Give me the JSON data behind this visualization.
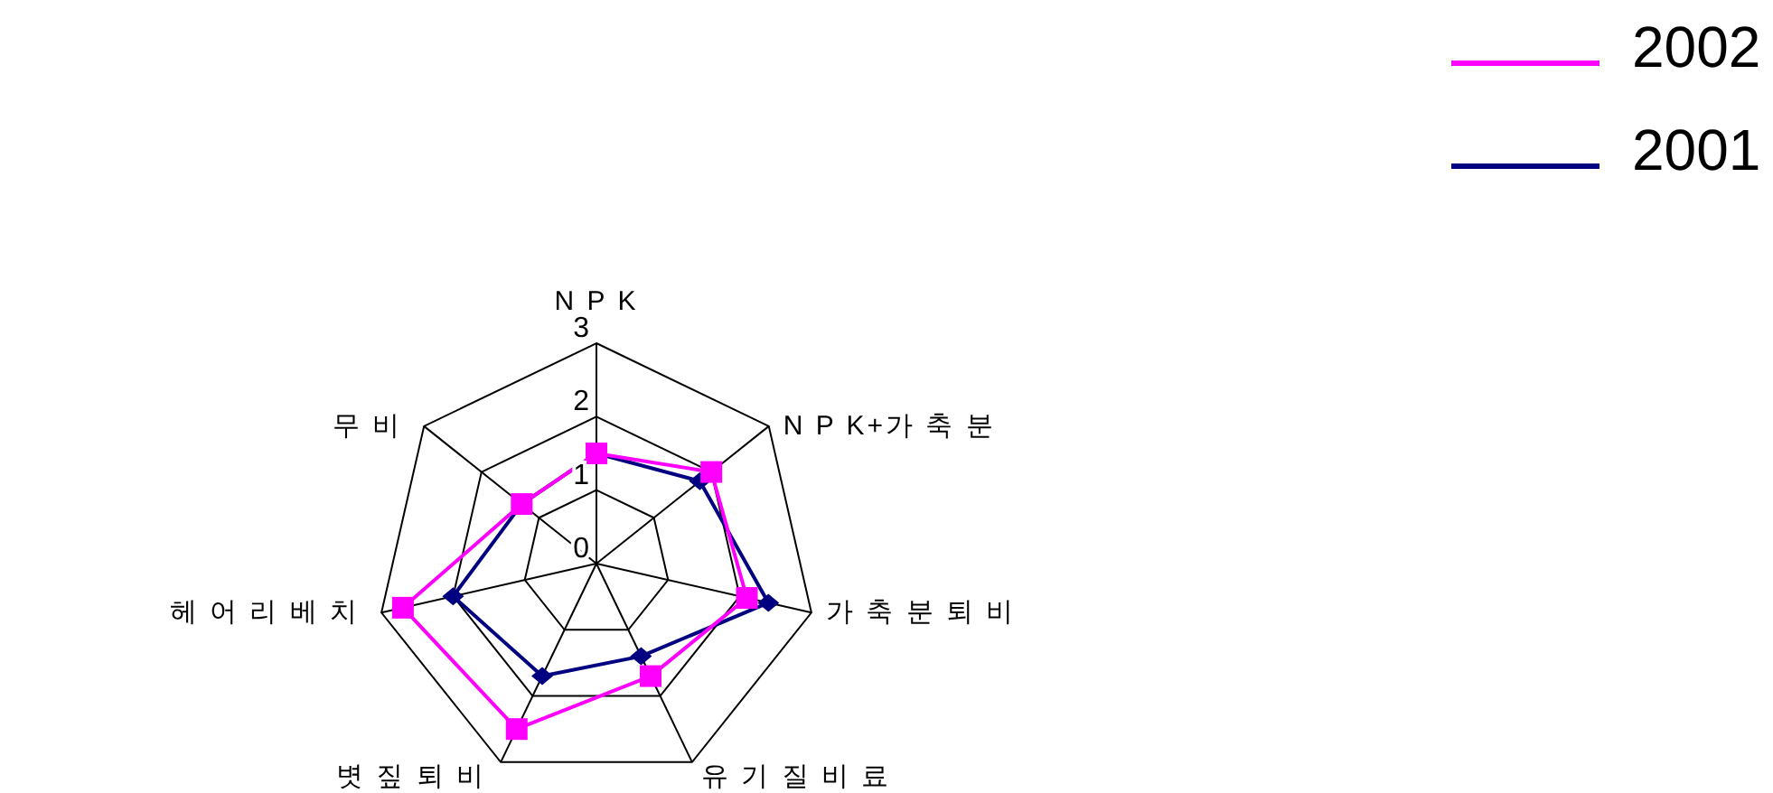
{
  "chart_data": {
    "type": "radar",
    "categories": [
      "N P K",
      "N P K+가 축 분",
      "가 축 분 퇴 비",
      "유 기 질 비 료",
      "볏 짚 퇴 비",
      "헤 어 리 베 치",
      "무 비"
    ],
    "series": [
      {
        "name": "2002",
        "color": "#ff00ff",
        "marker": "square",
        "values": [
          1.5,
          2.0,
          2.1,
          1.7,
          2.5,
          2.7,
          1.3
        ]
      },
      {
        "name": "2001",
        "color": "#000080",
        "marker": "diamond",
        "values": [
          1.5,
          1.8,
          2.4,
          1.4,
          1.7,
          2.0,
          1.3
        ]
      }
    ],
    "ylim": [
      0,
      3
    ],
    "yticks": [
      0,
      1,
      2,
      3
    ],
    "grid": true,
    "legend": "top right"
  }
}
